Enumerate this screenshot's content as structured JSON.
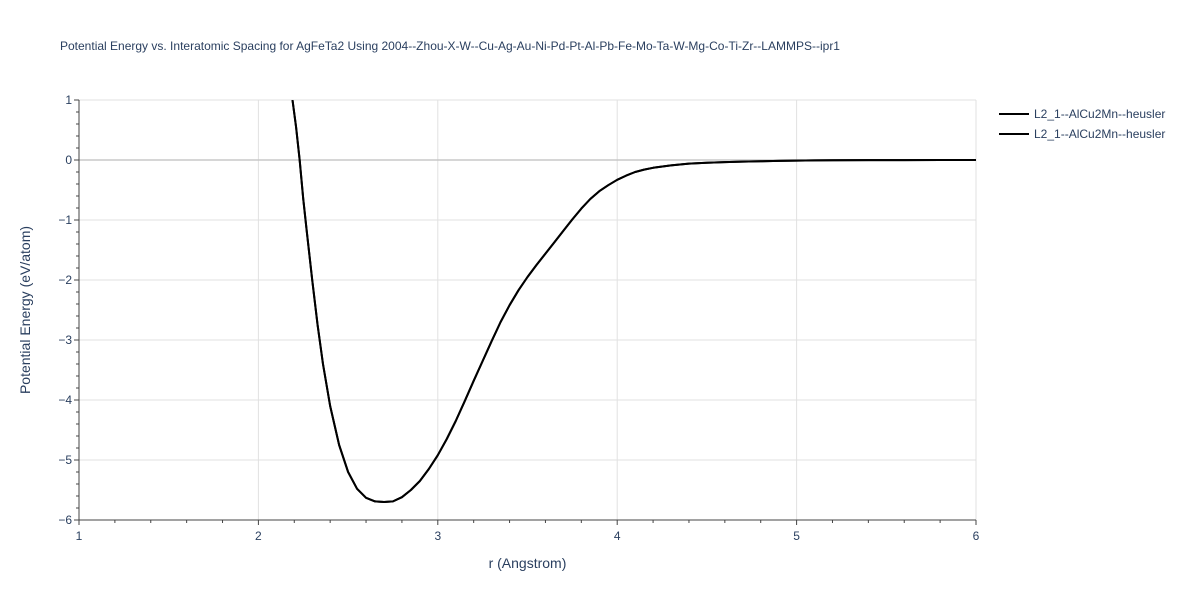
{
  "chart_data": {
    "type": "line",
    "title": "Potential Energy vs. Interatomic Spacing for AgFeTa2 Using 2004--Zhou-X-W--Cu-Ag-Au-Ni-Pd-Pt-Al-Pb-Fe-Mo-Ta-W-Mg-Co-Ti-Zr--LAMMPS--ipr1",
    "xlabel": "r (Angstrom)",
    "ylabel": "Potential Energy (eV/atom)",
    "xlim": [
      1,
      6
    ],
    "ylim": [
      -6,
      1
    ],
    "x_ticks": [
      1,
      2,
      3,
      4,
      5,
      6
    ],
    "x_tick_labels": [
      "1",
      "2",
      "3",
      "4",
      "5",
      "6"
    ],
    "y_ticks": [
      -6,
      -5,
      -4,
      -3,
      -2,
      -1,
      0,
      1
    ],
    "y_tick_labels": [
      "−6",
      "−5",
      "−4",
      "−3",
      "−2",
      "−1",
      "0",
      "1"
    ],
    "grid": true,
    "legend_position": "top-right",
    "series": [
      {
        "name": "L2_1--AlCu2Mn--heusler",
        "color": "#000000",
        "x": [
          2.19,
          2.21,
          2.23,
          2.25,
          2.27,
          2.3,
          2.33,
          2.36,
          2.4,
          2.45,
          2.5,
          2.55,
          2.6,
          2.65,
          2.7,
          2.75,
          2.8,
          2.85,
          2.9,
          2.95,
          3.0,
          3.05,
          3.1,
          3.15,
          3.2,
          3.25,
          3.3,
          3.35,
          3.4,
          3.45,
          3.5,
          3.55,
          3.6,
          3.65,
          3.7,
          3.75,
          3.8,
          3.85,
          3.9,
          3.95,
          4.0,
          4.05,
          4.1,
          4.15,
          4.2,
          4.3,
          4.4,
          4.5,
          4.6,
          4.7,
          4.8,
          4.9,
          5.0,
          5.1,
          5.2,
          5.4,
          5.6,
          5.8,
          6.0
        ],
        "y": [
          1.0,
          0.55,
          0.0,
          -0.65,
          -1.2,
          -2.0,
          -2.75,
          -3.4,
          -4.1,
          -4.75,
          -5.2,
          -5.48,
          -5.63,
          -5.69,
          -5.7,
          -5.69,
          -5.62,
          -5.5,
          -5.35,
          -5.15,
          -4.92,
          -4.65,
          -4.35,
          -4.02,
          -3.68,
          -3.35,
          -3.02,
          -2.7,
          -2.42,
          -2.17,
          -1.95,
          -1.75,
          -1.56,
          -1.37,
          -1.18,
          -0.99,
          -0.81,
          -0.65,
          -0.52,
          -0.42,
          -0.33,
          -0.26,
          -0.2,
          -0.16,
          -0.13,
          -0.09,
          -0.06,
          -0.045,
          -0.035,
          -0.028,
          -0.021,
          -0.015,
          -0.01,
          -0.007,
          -0.005,
          -0.003,
          -0.002,
          -0.001,
          0.0
        ]
      },
      {
        "name": "L2_1--AlCu2Mn--heusler",
        "color": "#000000",
        "x": [
          2.19,
          2.21,
          2.23,
          2.25,
          2.27,
          2.3,
          2.33,
          2.36,
          2.4,
          2.45,
          2.5,
          2.55,
          2.6,
          2.65,
          2.7,
          2.75,
          2.8,
          2.85,
          2.9,
          2.95,
          3.0,
          3.05,
          3.1,
          3.15,
          3.2,
          3.25,
          3.3,
          3.35,
          3.4,
          3.45,
          3.5,
          3.55,
          3.6,
          3.65,
          3.7,
          3.75,
          3.8,
          3.85,
          3.9,
          3.95,
          4.0,
          4.05,
          4.1,
          4.15,
          4.2,
          4.3,
          4.4,
          4.5,
          4.6,
          4.7,
          4.8,
          4.9,
          5.0,
          5.1,
          5.2,
          5.4,
          5.6,
          5.8,
          6.0
        ],
        "y": [
          1.0,
          0.55,
          0.0,
          -0.65,
          -1.2,
          -2.0,
          -2.75,
          -3.4,
          -4.1,
          -4.75,
          -5.2,
          -5.48,
          -5.63,
          -5.69,
          -5.7,
          -5.69,
          -5.62,
          -5.5,
          -5.35,
          -5.15,
          -4.92,
          -4.65,
          -4.35,
          -4.02,
          -3.68,
          -3.35,
          -3.02,
          -2.7,
          -2.42,
          -2.17,
          -1.95,
          -1.75,
          -1.56,
          -1.37,
          -1.18,
          -0.99,
          -0.81,
          -0.65,
          -0.52,
          -0.42,
          -0.33,
          -0.26,
          -0.2,
          -0.16,
          -0.13,
          -0.09,
          -0.06,
          -0.045,
          -0.035,
          -0.028,
          -0.021,
          -0.015,
          -0.01,
          -0.007,
          -0.005,
          -0.003,
          -0.002,
          -0.001,
          0.0
        ]
      }
    ]
  }
}
